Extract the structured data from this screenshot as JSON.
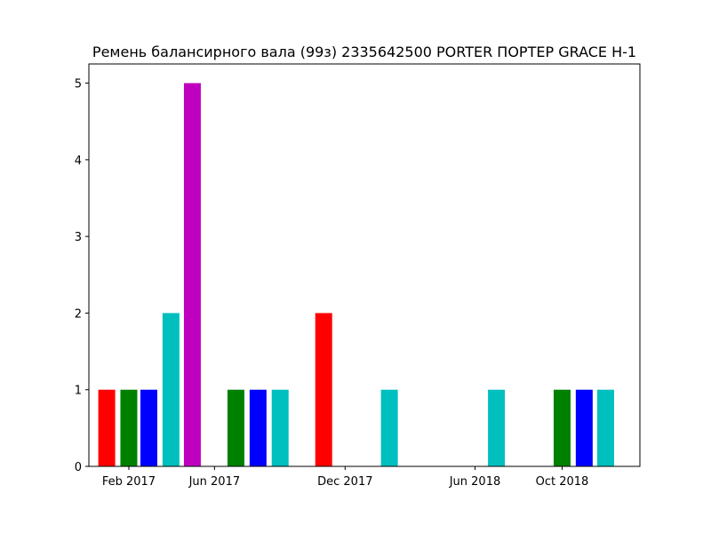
{
  "chart_data": {
    "type": "bar",
    "title": "Ремень балансирного вала (99з) 2335642500 PORTER ПОРТЕР GRACE H-1",
    "xlabel": "",
    "ylabel": "",
    "x_tick_labels": [
      "Feb 2017",
      "Jun 2017",
      "Dec 2017",
      "Jun 2018",
      "Oct 2018"
    ],
    "x_ticks": [
      "2017-02",
      "2017-06",
      "2017-12",
      "2018-06",
      "2018-10"
    ],
    "y_ticks": [
      0,
      1,
      2,
      3,
      4,
      5
    ],
    "ylim": [
      0,
      5.25
    ],
    "xlim": [
      "2016-12-07",
      "2019-01-18"
    ],
    "grid": false,
    "bars": [
      {
        "x": "2017-01",
        "value": 1,
        "color": "#ff0000"
      },
      {
        "x": "2017-02",
        "value": 1,
        "color": "#008000"
      },
      {
        "x": "2017-03",
        "value": 1,
        "color": "#0000ff"
      },
      {
        "x": "2017-04",
        "value": 2,
        "color": "#00bfbf"
      },
      {
        "x": "2017-05",
        "value": 5,
        "color": "#bf00bf"
      },
      {
        "x": "2017-07",
        "value": 1,
        "color": "#008000"
      },
      {
        "x": "2017-08",
        "value": 1,
        "color": "#0000ff"
      },
      {
        "x": "2017-09",
        "value": 1,
        "color": "#00bfbf"
      },
      {
        "x": "2017-11",
        "value": 2,
        "color": "#ff0000"
      },
      {
        "x": "2018-02",
        "value": 1,
        "color": "#00bfbf"
      },
      {
        "x": "2018-07",
        "value": 1,
        "color": "#00bfbf"
      },
      {
        "x": "2018-10",
        "value": 1,
        "color": "#008000"
      },
      {
        "x": "2018-11",
        "value": 1,
        "color": "#0000ff"
      },
      {
        "x": "2018-12",
        "value": 1,
        "color": "#00bfbf"
      }
    ]
  }
}
